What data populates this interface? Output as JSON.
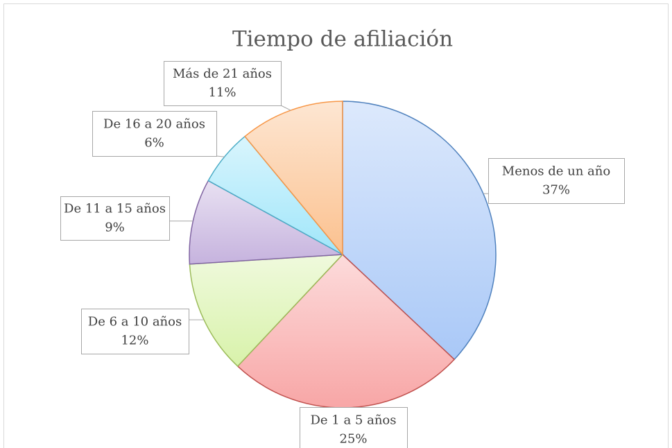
{
  "chart_data": {
    "type": "pie",
    "title": "Tiempo de afiliación",
    "categories": [
      "Menos de un año",
      "De 1 a 5 años",
      "De 6 a 10 años",
      "De 11 a 15 años",
      "De 16 a 20 años",
      "Más de 21 años"
    ],
    "values": [
      37,
      25,
      12,
      9,
      6,
      11
    ],
    "value_labels": [
      "37%",
      "25%",
      "12%",
      "9%",
      "6%",
      "11%"
    ],
    "colors": [
      "#a9c8f7",
      "#f8a6a6",
      "#d8f2aa",
      "#c6b3de",
      "#a0e6fa",
      "#fbc18f"
    ],
    "edge_colors": [
      "#4f81bd",
      "#c0504d",
      "#9bbb59",
      "#8064a2",
      "#4bacc6",
      "#f79646"
    ]
  }
}
